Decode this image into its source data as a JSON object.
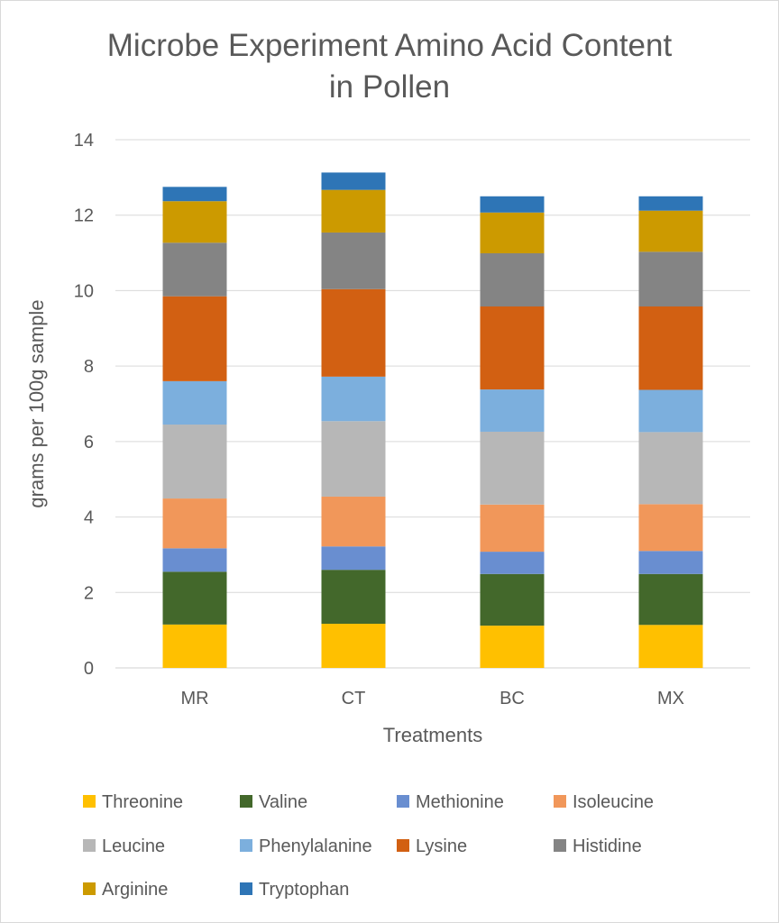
{
  "chart_data": {
    "type": "bar",
    "stacked": true,
    "title_line1": "Microbe Experiment Amino Acid Content",
    "title_line2": "in Pollen",
    "xlabel": "Treatments",
    "ylabel": "grams per 100g sample",
    "ylim": [
      0,
      14
    ],
    "yticks": [
      "0",
      "2",
      "4",
      "6",
      "8",
      "10",
      "12",
      "14"
    ],
    "grid": true,
    "legend_position": "bottom",
    "categories": [
      "MR",
      "CT",
      "BC",
      "MX"
    ],
    "series": [
      {
        "name": "Threonine",
        "color": "#FFC000",
        "values": [
          1.15,
          1.17,
          1.12,
          1.14
        ]
      },
      {
        "name": "Valine",
        "color": "#43682B",
        "values": [
          1.4,
          1.43,
          1.37,
          1.35
        ]
      },
      {
        "name": "Methionine",
        "color": "#698ED0",
        "values": [
          0.62,
          0.62,
          0.59,
          0.61
        ]
      },
      {
        "name": "Isoleucine",
        "color": "#F1975A",
        "values": [
          1.32,
          1.32,
          1.25,
          1.24
        ]
      },
      {
        "name": "Leucine",
        "color": "#B7B7B7",
        "values": [
          1.96,
          2.0,
          1.93,
          1.91
        ]
      },
      {
        "name": "Phenylalanine",
        "color": "#7CAFDD",
        "values": [
          1.15,
          1.18,
          1.12,
          1.12
        ]
      },
      {
        "name": "Lysine",
        "color": "#D26012",
        "values": [
          2.25,
          2.32,
          2.2,
          2.21
        ]
      },
      {
        "name": "Histidine",
        "color": "#848484",
        "values": [
          1.42,
          1.5,
          1.41,
          1.45
        ]
      },
      {
        "name": "Arginine",
        "color": "#CC9A00",
        "values": [
          1.1,
          1.13,
          1.08,
          1.09
        ]
      },
      {
        "name": "Tryptophan",
        "color": "#2E75B6",
        "values": [
          0.38,
          0.46,
          0.43,
          0.38
        ]
      }
    ]
  }
}
